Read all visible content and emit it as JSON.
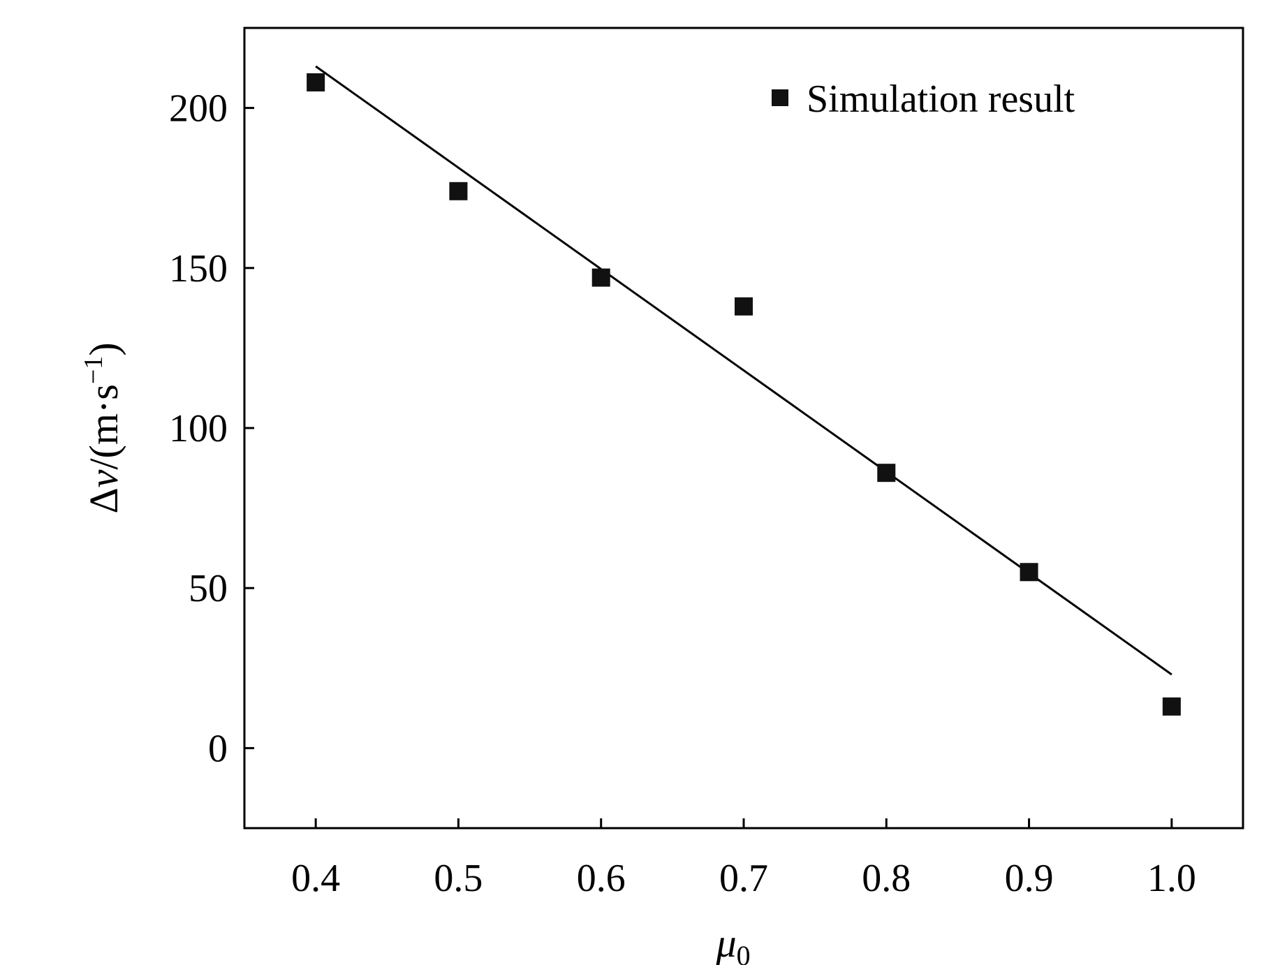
{
  "chart_data": {
    "type": "scatter",
    "title": "",
    "xlabel": {
      "symbol": "μ",
      "subscript": "0"
    },
    "ylabel": {
      "prefix": "Δ",
      "variable": "v",
      "unit_open": "/(m·s",
      "unit_exp": "−1",
      "unit_close": ")"
    },
    "xlim": [
      0.35,
      1.05
    ],
    "ylim": [
      -25,
      225
    ],
    "xticks": [
      "0.4",
      "0.5",
      "0.6",
      "0.7",
      "0.8",
      "0.9",
      "1.0"
    ],
    "yticks": [
      "0",
      "50",
      "100",
      "150",
      "200"
    ],
    "legend": {
      "position": "top-right",
      "entries": [
        "Simulation result"
      ]
    },
    "grid": false,
    "series": [
      {
        "name": "Simulation result",
        "marker": "square",
        "color": "#111111",
        "x": [
          0.4,
          0.5,
          0.6,
          0.7,
          0.8,
          0.9,
          1.0
        ],
        "y": [
          208,
          174,
          147,
          138,
          86,
          55,
          13
        ]
      }
    ],
    "fit_line": {
      "x": [
        0.4,
        1.0
      ],
      "y": [
        213,
        23
      ],
      "color": "#000000"
    }
  }
}
